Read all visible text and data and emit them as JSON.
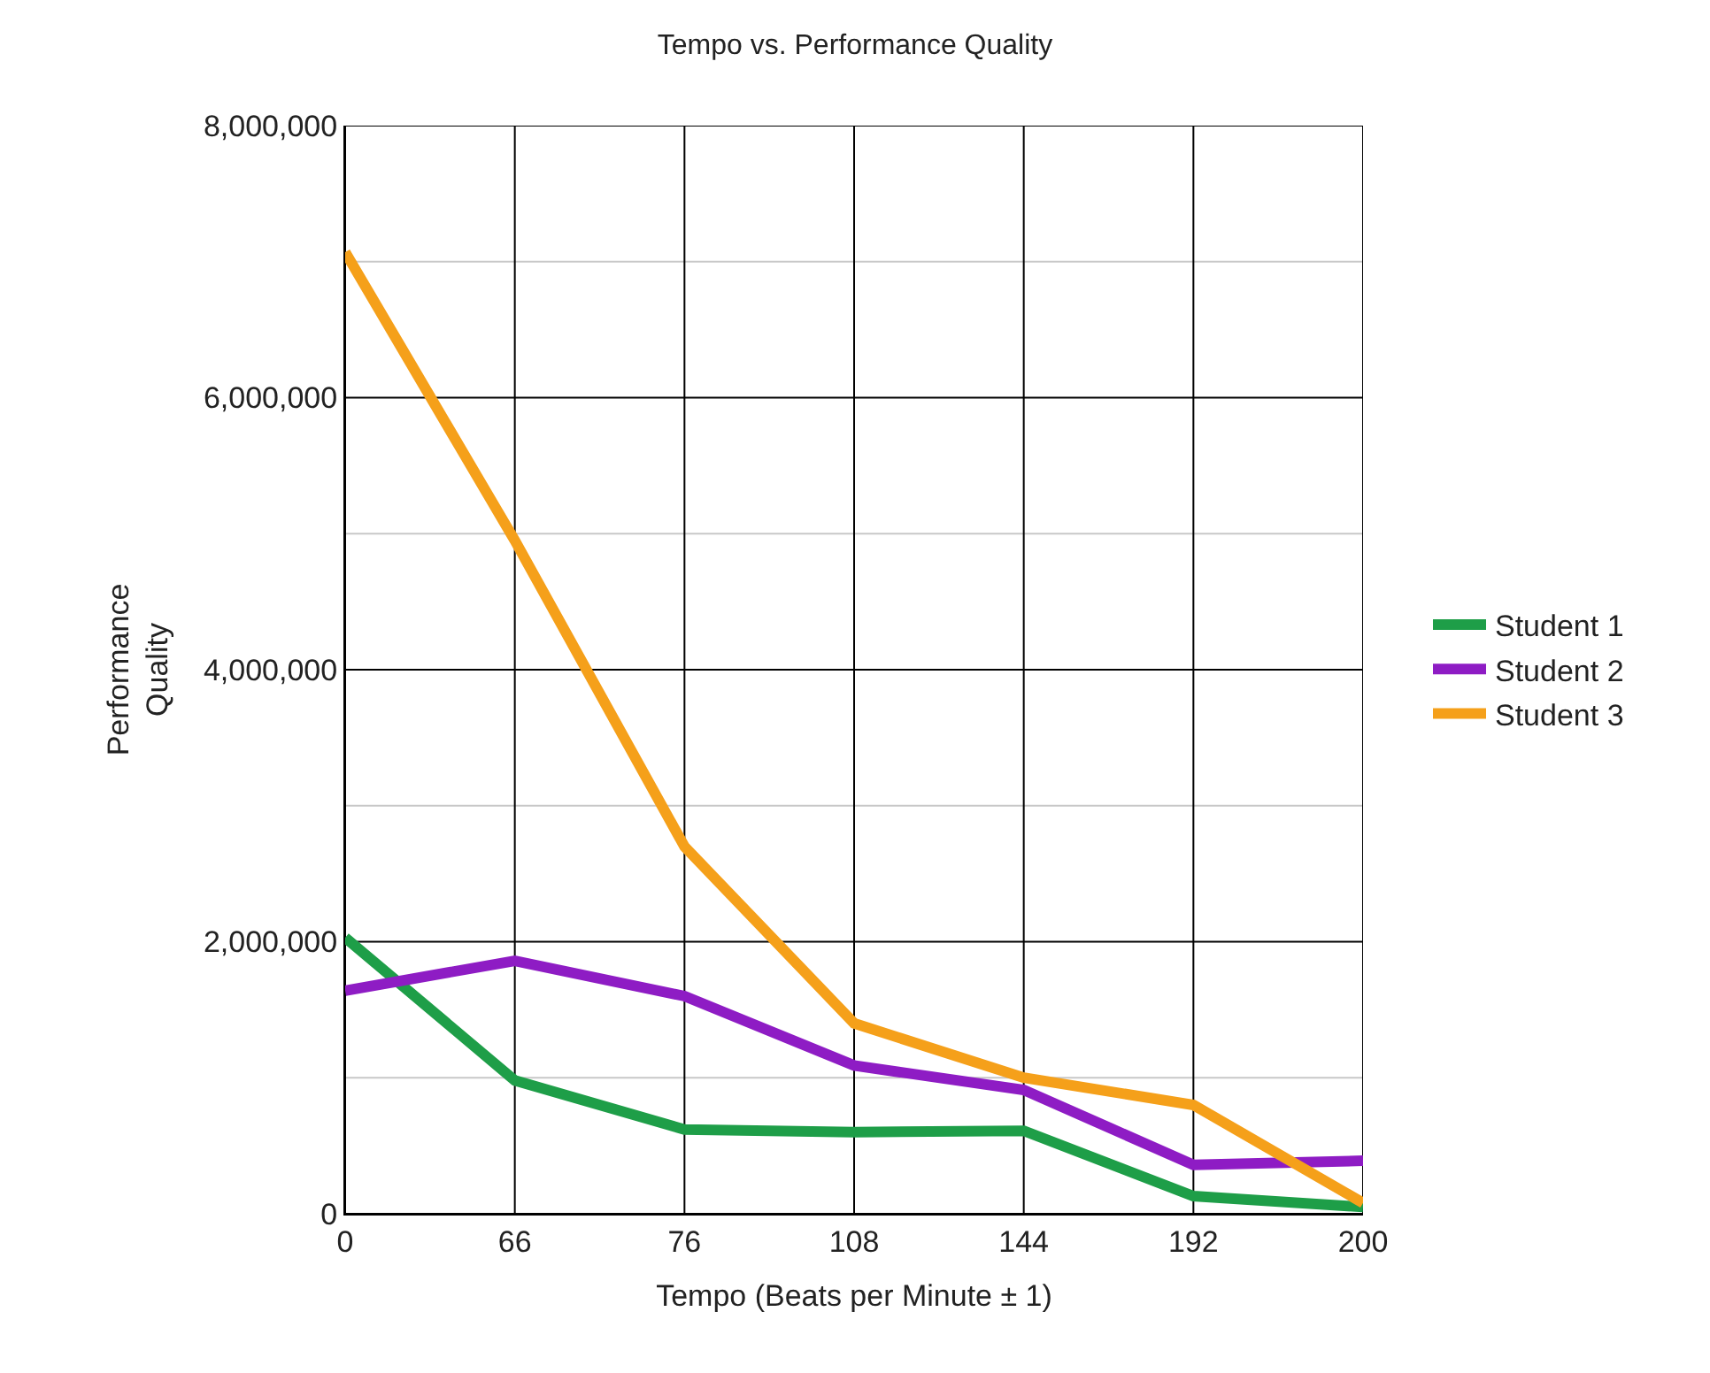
{
  "chart_data": {
    "type": "line",
    "title": "Tempo vs. Performance Quality",
    "xlabel": "Tempo (Beats per Minute ± 1)",
    "ylabel": "Performance\nQuality",
    "categories": [
      "0",
      "66",
      "76",
      "108",
      "144",
      "192",
      "200"
    ],
    "series": [
      {
        "name": "Student 1",
        "color": "#1e9e48",
        "values": [
          2030000,
          980000,
          620000,
          600000,
          610000,
          130000,
          50000
        ]
      },
      {
        "name": "Student 2",
        "color": "#8e1cc4",
        "values": [
          1640000,
          1860000,
          1600000,
          1090000,
          910000,
          360000,
          390000
        ]
      },
      {
        "name": "Student 3",
        "color": "#f5a01a",
        "values": [
          7070000,
          4950000,
          2700000,
          1400000,
          1000000,
          800000,
          80000
        ]
      }
    ],
    "ylim": [
      0,
      8000000
    ],
    "yticks": [
      {
        "value": 0,
        "label": "0"
      },
      {
        "value": 1000000,
        "label": null
      },
      {
        "value": 2000000,
        "label": "2,000,000"
      },
      {
        "value": 3000000,
        "label": null
      },
      {
        "value": 4000000,
        "label": "4,000,000"
      },
      {
        "value": 5000000,
        "label": null
      },
      {
        "value": 6000000,
        "label": "6,000,000"
      },
      {
        "value": 7000000,
        "label": null
      },
      {
        "value": 8000000,
        "label": "8,000,000"
      }
    ],
    "grid": true,
    "legend": "right",
    "marker": "none",
    "line_style": "solid"
  }
}
